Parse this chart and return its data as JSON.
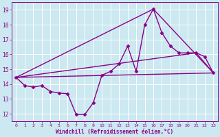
{
  "xlabel": "Windchill (Refroidissement éolien,°C)",
  "bg_color": "#cce8f0",
  "grid_color": "#ffffff",
  "line_color": "#880088",
  "xlim": [
    -0.5,
    23.5
  ],
  "ylim": [
    11.5,
    19.5
  ],
  "yticks": [
    12,
    13,
    14,
    15,
    16,
    17,
    18,
    19
  ],
  "xticks": [
    0,
    1,
    2,
    3,
    4,
    5,
    6,
    7,
    8,
    9,
    10,
    11,
    12,
    13,
    14,
    15,
    16,
    17,
    18,
    19,
    20,
    21,
    22,
    23
  ],
  "line1_x": [
    0,
    1,
    2,
    3,
    4,
    5,
    6,
    7,
    8,
    9,
    10,
    11,
    12,
    13,
    14,
    15,
    16,
    17,
    18,
    19,
    20,
    21,
    22,
    23
  ],
  "line1_y": [
    14.45,
    13.9,
    13.8,
    13.9,
    13.5,
    13.4,
    13.35,
    11.95,
    11.95,
    12.75,
    14.6,
    14.85,
    15.35,
    16.55,
    14.85,
    18.0,
    19.05,
    17.45,
    16.55,
    16.1,
    16.1,
    16.1,
    15.85,
    14.75
  ],
  "line2_x": [
    0,
    23
  ],
  "line2_y": [
    14.45,
    14.75
  ],
  "line3_x": [
    0,
    21,
    23
  ],
  "line3_y": [
    14.45,
    16.1,
    14.75
  ],
  "line4_x": [
    0,
    16,
    23
  ],
  "line4_y": [
    14.45,
    19.05,
    14.75
  ]
}
